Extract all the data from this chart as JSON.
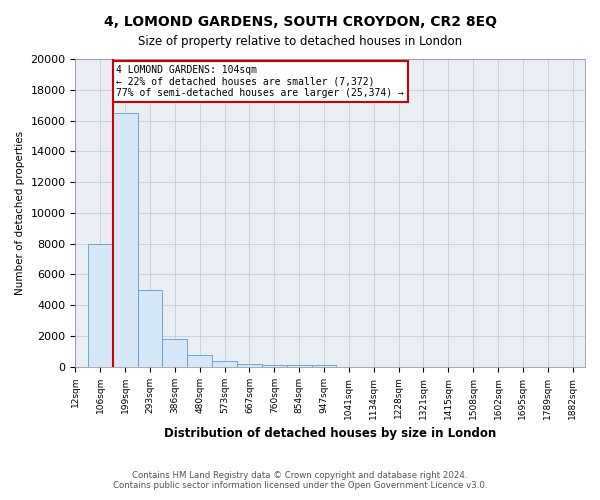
{
  "title1": "4, LOMOND GARDENS, SOUTH CROYDON, CR2 8EQ",
  "title2": "Size of property relative to detached houses in London",
  "xlabel": "Distribution of detached houses by size in London",
  "ylabel": "Number of detached properties",
  "footer1": "Contains HM Land Registry data © Crown copyright and database right 2024.",
  "footer2": "Contains public sector information licensed under the Open Government Licence v3.0.",
  "bins": [
    "12sqm",
    "106sqm",
    "199sqm",
    "293sqm",
    "386sqm",
    "480sqm",
    "573sqm",
    "667sqm",
    "760sqm",
    "854sqm",
    "947sqm",
    "1041sqm",
    "1134sqm",
    "1228sqm",
    "1321sqm",
    "1415sqm",
    "1508sqm",
    "1602sqm",
    "1695sqm",
    "1789sqm",
    "1882sqm"
  ],
  "values": [
    8000,
    16500,
    5000,
    1800,
    750,
    350,
    200,
    150,
    100,
    100,
    0,
    0,
    0,
    0,
    0,
    0,
    0,
    0,
    0,
    0
  ],
  "bar_color": "#d6e8f7",
  "bar_edge_color": "#5b9bd5",
  "red_line_bin": 1,
  "anno_line1": "4 LOMOND GARDENS: 104sqm",
  "anno_line2": "← 22% of detached houses are smaller (7,372)",
  "anno_line3": "77% of semi-detached houses are larger (25,374) →",
  "annotation_box_facecolor": "#ffffff",
  "annotation_border_color": "#cc0000",
  "red_line_color": "#cc0000",
  "ylim": [
    0,
    20000
  ],
  "yticks": [
    0,
    2000,
    4000,
    6000,
    8000,
    10000,
    12000,
    14000,
    16000,
    18000,
    20000
  ],
  "grid_color": "#cccccc",
  "background_color": "#e8eef4"
}
